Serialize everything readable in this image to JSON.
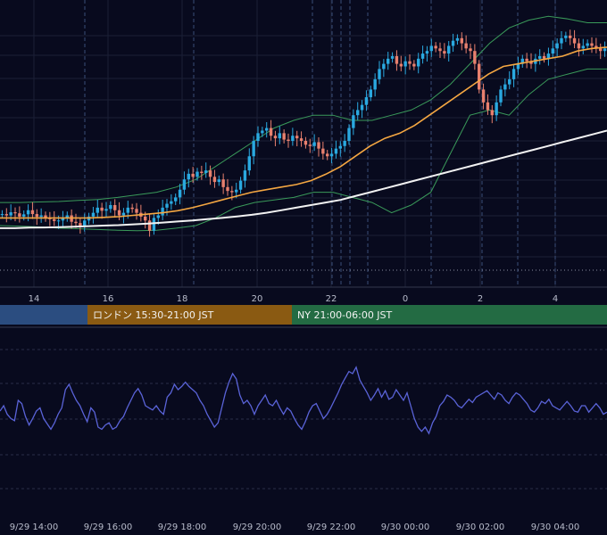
{
  "chart_data": [
    {
      "type": "candlestick",
      "x_ticks": [
        "14",
        "16",
        "18",
        "20",
        "22",
        "0",
        "2",
        "4"
      ],
      "indicators": [
        "bollinger-bands",
        "moving-average-orange",
        "moving-average-white"
      ],
      "candles_close": [
        0.215,
        0.21,
        0.222,
        0.218,
        0.205,
        0.214,
        0.23,
        0.215,
        0.204,
        0.21,
        0.2,
        0.195,
        0.188,
        0.19,
        0.2,
        0.21,
        0.185,
        0.18,
        0.17,
        0.19,
        0.205,
        0.22,
        0.24,
        0.228,
        0.235,
        0.25,
        0.23,
        0.21,
        0.22,
        0.24,
        0.235,
        0.22,
        0.205,
        0.19,
        0.15,
        0.2,
        0.21,
        0.24,
        0.255,
        0.265,
        0.28,
        0.31,
        0.35,
        0.372,
        0.36,
        0.38,
        0.375,
        0.385,
        0.36,
        0.34,
        0.35,
        0.32,
        0.305,
        0.3,
        0.31,
        0.345,
        0.385,
        0.44,
        0.5,
        0.53,
        0.54,
        0.55,
        0.52,
        0.51,
        0.53,
        0.505,
        0.5,
        0.52,
        0.51,
        0.5,
        0.485,
        0.48,
        0.495,
        0.47,
        0.45,
        0.44,
        0.45,
        0.47,
        0.48,
        0.5,
        0.55,
        0.6,
        0.62,
        0.64,
        0.67,
        0.7,
        0.74,
        0.78,
        0.8,
        0.82,
        0.83,
        0.8,
        0.79,
        0.81,
        0.8,
        0.79,
        0.82,
        0.84,
        0.85,
        0.87,
        0.86,
        0.85,
        0.84,
        0.87,
        0.89,
        0.9,
        0.88,
        0.86,
        0.85,
        0.8,
        0.7,
        0.65,
        0.62,
        0.6,
        0.65,
        0.7,
        0.72,
        0.74,
        0.78,
        0.8,
        0.82,
        0.81,
        0.8,
        0.82,
        0.83,
        0.82,
        0.84,
        0.86,
        0.88,
        0.9,
        0.91,
        0.9,
        0.88,
        0.86,
        0.87,
        0.88,
        0.87,
        0.86,
        0.85,
        0.86
      ],
      "bollinger_upper": [
        0.26,
        0.26,
        0.262,
        0.264,
        0.268,
        0.272,
        0.28,
        0.29,
        0.3,
        0.32,
        0.35,
        0.4,
        0.45,
        0.5,
        0.55,
        0.58,
        0.6,
        0.6,
        0.58,
        0.58,
        0.6,
        0.62,
        0.66,
        0.72,
        0.8,
        0.88,
        0.94,
        0.97,
        0.985,
        0.975,
        0.96,
        0.96
      ],
      "bollinger_lower": [
        0.17,
        0.168,
        0.165,
        0.16,
        0.158,
        0.155,
        0.152,
        0.15,
        0.152,
        0.16,
        0.17,
        0.2,
        0.24,
        0.26,
        0.27,
        0.28,
        0.3,
        0.3,
        0.28,
        0.26,
        0.22,
        0.25,
        0.3,
        0.45,
        0.6,
        0.62,
        0.6,
        0.68,
        0.74,
        0.76,
        0.78,
        0.78
      ],
      "ma_orange": [
        0.2,
        0.2,
        0.2,
        0.2,
        0.2,
        0.2,
        0.2,
        0.202,
        0.205,
        0.21,
        0.215,
        0.22,
        0.228,
        0.24,
        0.255,
        0.27,
        0.285,
        0.3,
        0.31,
        0.32,
        0.33,
        0.345,
        0.37,
        0.4,
        0.44,
        0.48,
        0.51,
        0.53,
        0.56,
        0.6,
        0.64,
        0.68,
        0.72,
        0.76,
        0.79,
        0.8,
        0.81,
        0.82,
        0.83,
        0.85,
        0.86,
        0.865
      ],
      "ma_white": [
        0.16,
        0.16,
        0.162,
        0.163,
        0.164,
        0.166,
        0.168,
        0.17,
        0.172,
        0.175,
        0.178,
        0.182,
        0.186,
        0.19,
        0.195,
        0.2,
        0.206,
        0.212,
        0.22,
        0.23,
        0.24,
        0.25,
        0.26,
        0.27,
        0.285,
        0.3,
        0.315,
        0.33,
        0.345,
        0.36,
        0.375,
        0.39,
        0.405,
        0.42,
        0.435,
        0.45,
        0.465,
        0.48,
        0.495,
        0.51,
        0.525,
        0.54
      ]
    },
    {
      "type": "line",
      "x_ticks": [
        "9/29 14:00",
        "9/29 16:00",
        "9/29 18:00",
        "9/29 20:00",
        "9/29 22:00",
        "9/30 00:00",
        "9/30 02:00",
        "9/30 04:00"
      ],
      "y_range": [
        0,
        1
      ],
      "series": [
        {
          "color": "#5a63d8",
          "values": [
            0.45,
            0.5,
            0.42,
            0.38,
            0.36,
            0.55,
            0.52,
            0.4,
            0.32,
            0.38,
            0.45,
            0.48,
            0.38,
            0.33,
            0.28,
            0.34,
            0.42,
            0.48,
            0.65,
            0.7,
            0.62,
            0.55,
            0.5,
            0.42,
            0.35,
            0.48,
            0.44,
            0.3,
            0.28,
            0.32,
            0.34,
            0.28,
            0.3,
            0.36,
            0.4,
            0.48,
            0.55,
            0.62,
            0.66,
            0.6,
            0.5,
            0.48,
            0.46,
            0.5,
            0.45,
            0.42,
            0.58,
            0.62,
            0.7,
            0.65,
            0.68,
            0.72,
            0.68,
            0.65,
            0.62,
            0.55,
            0.5,
            0.42,
            0.36,
            0.3,
            0.34,
            0.48,
            0.62,
            0.72,
            0.8,
            0.75,
            0.6,
            0.52,
            0.55,
            0.5,
            0.42,
            0.5,
            0.55,
            0.6,
            0.52,
            0.5,
            0.55,
            0.48,
            0.42,
            0.48,
            0.45,
            0.38,
            0.32,
            0.28,
            0.35,
            0.44,
            0.5,
            0.52,
            0.45,
            0.38,
            0.42,
            0.48,
            0.55,
            0.62,
            0.7,
            0.76,
            0.82,
            0.8,
            0.86,
            0.74,
            0.68,
            0.62,
            0.55,
            0.6,
            0.66,
            0.58,
            0.64,
            0.56,
            0.58,
            0.65,
            0.6,
            0.55,
            0.62,
            0.5,
            0.38,
            0.3,
            0.26,
            0.3,
            0.24,
            0.34,
            0.4,
            0.5,
            0.54,
            0.6,
            0.58,
            0.55,
            0.5,
            0.48,
            0.52,
            0.56,
            0.53,
            0.58,
            0.6,
            0.62,
            0.64,
            0.6,
            0.56,
            0.62,
            0.6,
            0.55,
            0.52,
            0.58,
            0.62,
            0.6,
            0.56,
            0.52,
            0.46,
            0.44,
            0.48,
            0.54,
            0.52,
            0.56,
            0.5,
            0.48,
            0.46,
            0.5,
            0.54,
            0.5,
            0.45,
            0.44,
            0.5,
            0.5,
            0.44,
            0.48,
            0.52,
            0.48,
            0.42,
            0.44
          ]
        }
      ]
    }
  ],
  "sessions": [
    {
      "label": "",
      "color": "#2b4d80"
    },
    {
      "label": "ロンドン 15:30-21:00 JST",
      "color": "#8a5a12"
    },
    {
      "label": "NY 21:00-06:00 JST",
      "color": "#236b43"
    }
  ]
}
